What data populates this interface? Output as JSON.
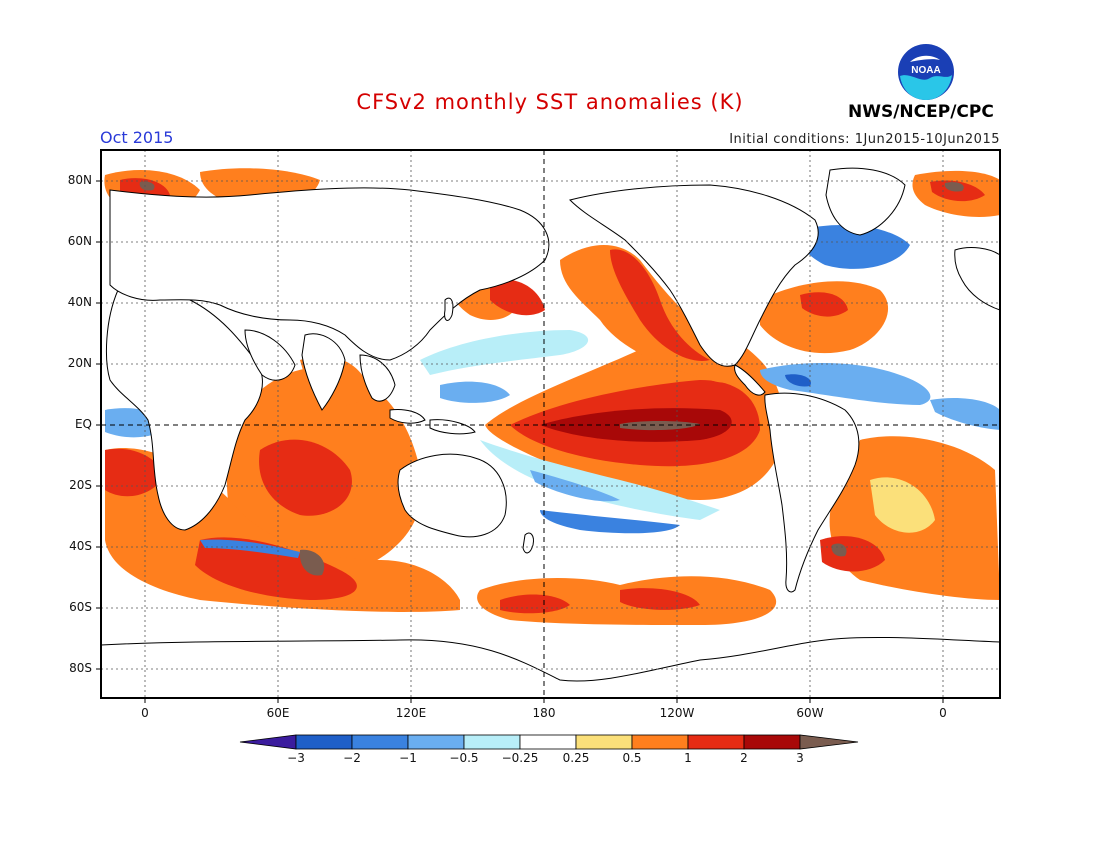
{
  "title": "CFSv2 monthly SST anomalies (K)",
  "period": "Oct 2015",
  "initial_conditions": "Initial conditions: 1Jun2015-10Jun2015",
  "agency": "NWS/NCEP/CPC",
  "logo_text": "NOAA",
  "lat_labels": [
    "80N",
    "60N",
    "40N",
    "20N",
    "EQ",
    "20S",
    "40S",
    "60S",
    "80S"
  ],
  "lon_labels": [
    "0",
    "60E",
    "120E",
    "180",
    "120W",
    "60W",
    "0"
  ],
  "colorbar": {
    "ticks": [
      "-3",
      "-2",
      "-1",
      "-0.5",
      "-0.25",
      "0.25",
      "0.5",
      "1",
      "2",
      "3"
    ],
    "colors": [
      "#3b1c9e",
      "#1f5fc8",
      "#3a82e0",
      "#6aaef0",
      "#b8eef8",
      "#ffffff",
      "#fbe07a",
      "#ff7f1e",
      "#e62c14",
      "#a80808",
      "#7a5c4f"
    ]
  },
  "map_colors": {
    "land": "#ffffff",
    "coast": "#000000",
    "grid": "#555555"
  }
}
